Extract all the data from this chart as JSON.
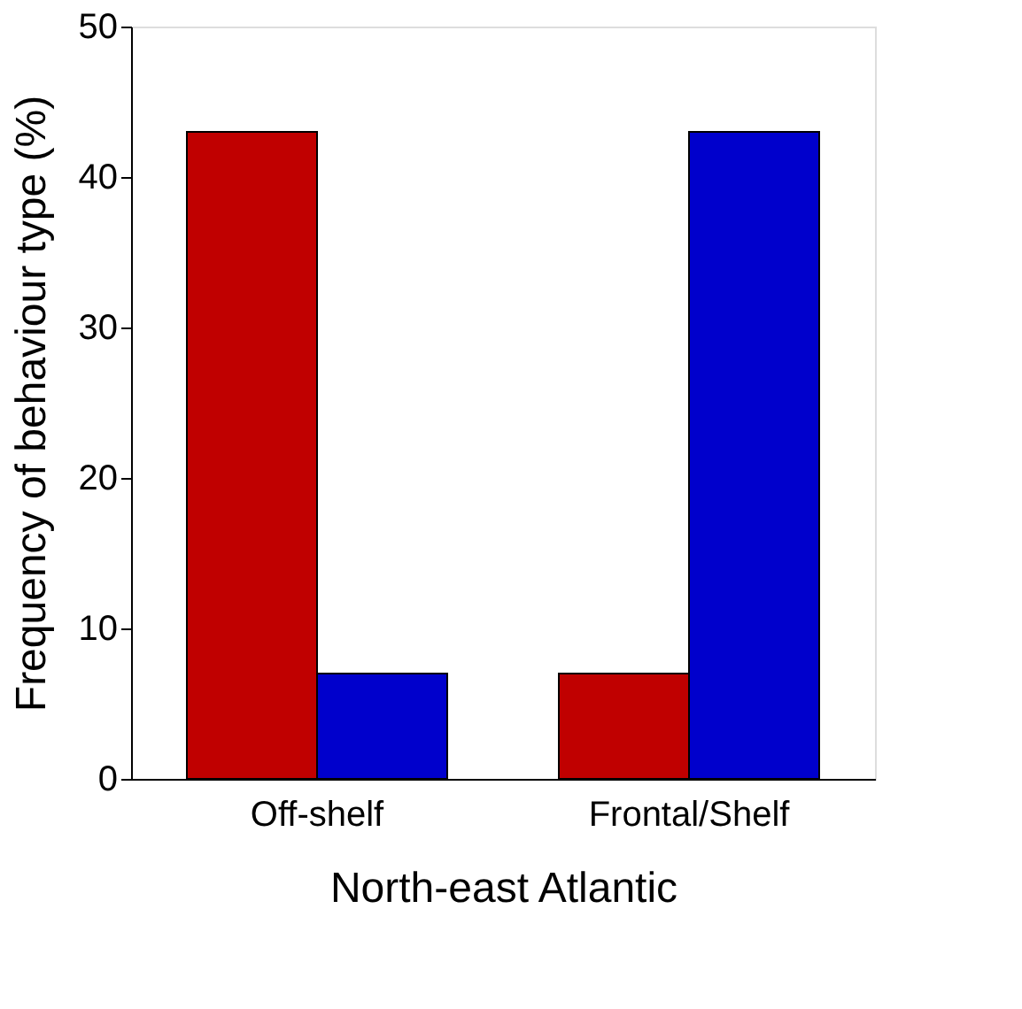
{
  "chart_data": {
    "type": "bar",
    "xlabel": "North-east Atlantic",
    "ylabel": "Frequency of behaviour type (%)",
    "categories": [
      "Off-shelf",
      "Frontal/Shelf"
    ],
    "series": [
      {
        "color": "#c00000",
        "values": [
          43,
          7
        ]
      },
      {
        "color": "#0000cc",
        "values": [
          7,
          43
        ]
      }
    ],
    "ylim": [
      0,
      50
    ],
    "yticks": [
      0,
      10,
      20,
      30,
      40,
      50
    ],
    "grid": false,
    "legend": false
  }
}
